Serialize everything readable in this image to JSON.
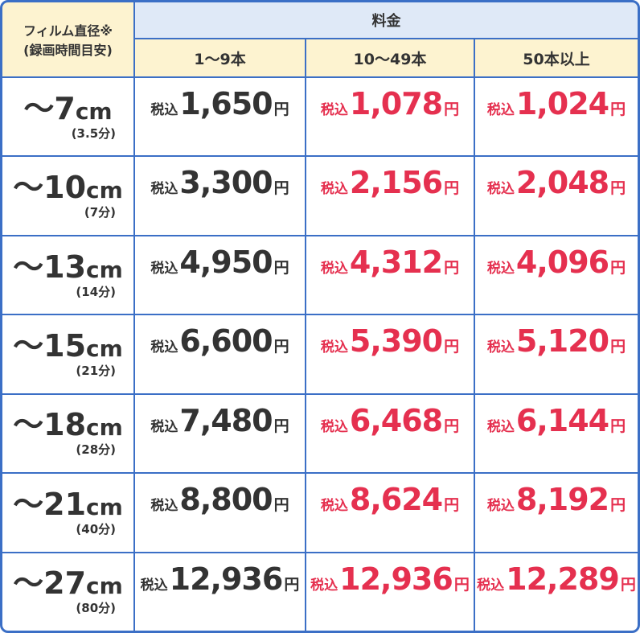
{
  "header": {
    "size_label": "フィルム直径※",
    "size_sub": "(録画時間目安)",
    "price_label": "料金",
    "columns": [
      "1〜9本",
      "10〜49本",
      "50本以上"
    ]
  },
  "tax_label": "税込",
  "yen": "円",
  "size_unit": "cm",
  "rows": [
    {
      "size": "〜7",
      "time": "(3.5分)",
      "prices": [
        "1,650",
        "1,078",
        "1,024"
      ]
    },
    {
      "size": "〜10",
      "time": "(7分)",
      "prices": [
        "3,300",
        "2,156",
        "2,048"
      ]
    },
    {
      "size": "〜13",
      "time": "(14分)",
      "prices": [
        "4,950",
        "4,312",
        "4,096"
      ]
    },
    {
      "size": "〜15",
      "time": "(21分)",
      "prices": [
        "6,600",
        "5,390",
        "5,120"
      ]
    },
    {
      "size": "〜18",
      "time": "(28分)",
      "prices": [
        "7,480",
        "6,468",
        "6,144"
      ]
    },
    {
      "size": "〜21",
      "time": "(40分)",
      "prices": [
        "8,800",
        "8,624",
        "8,192"
      ]
    },
    {
      "size": "〜27",
      "time": "(80分)",
      "prices": [
        "12,936",
        "12,936",
        "12,289"
      ]
    }
  ]
}
